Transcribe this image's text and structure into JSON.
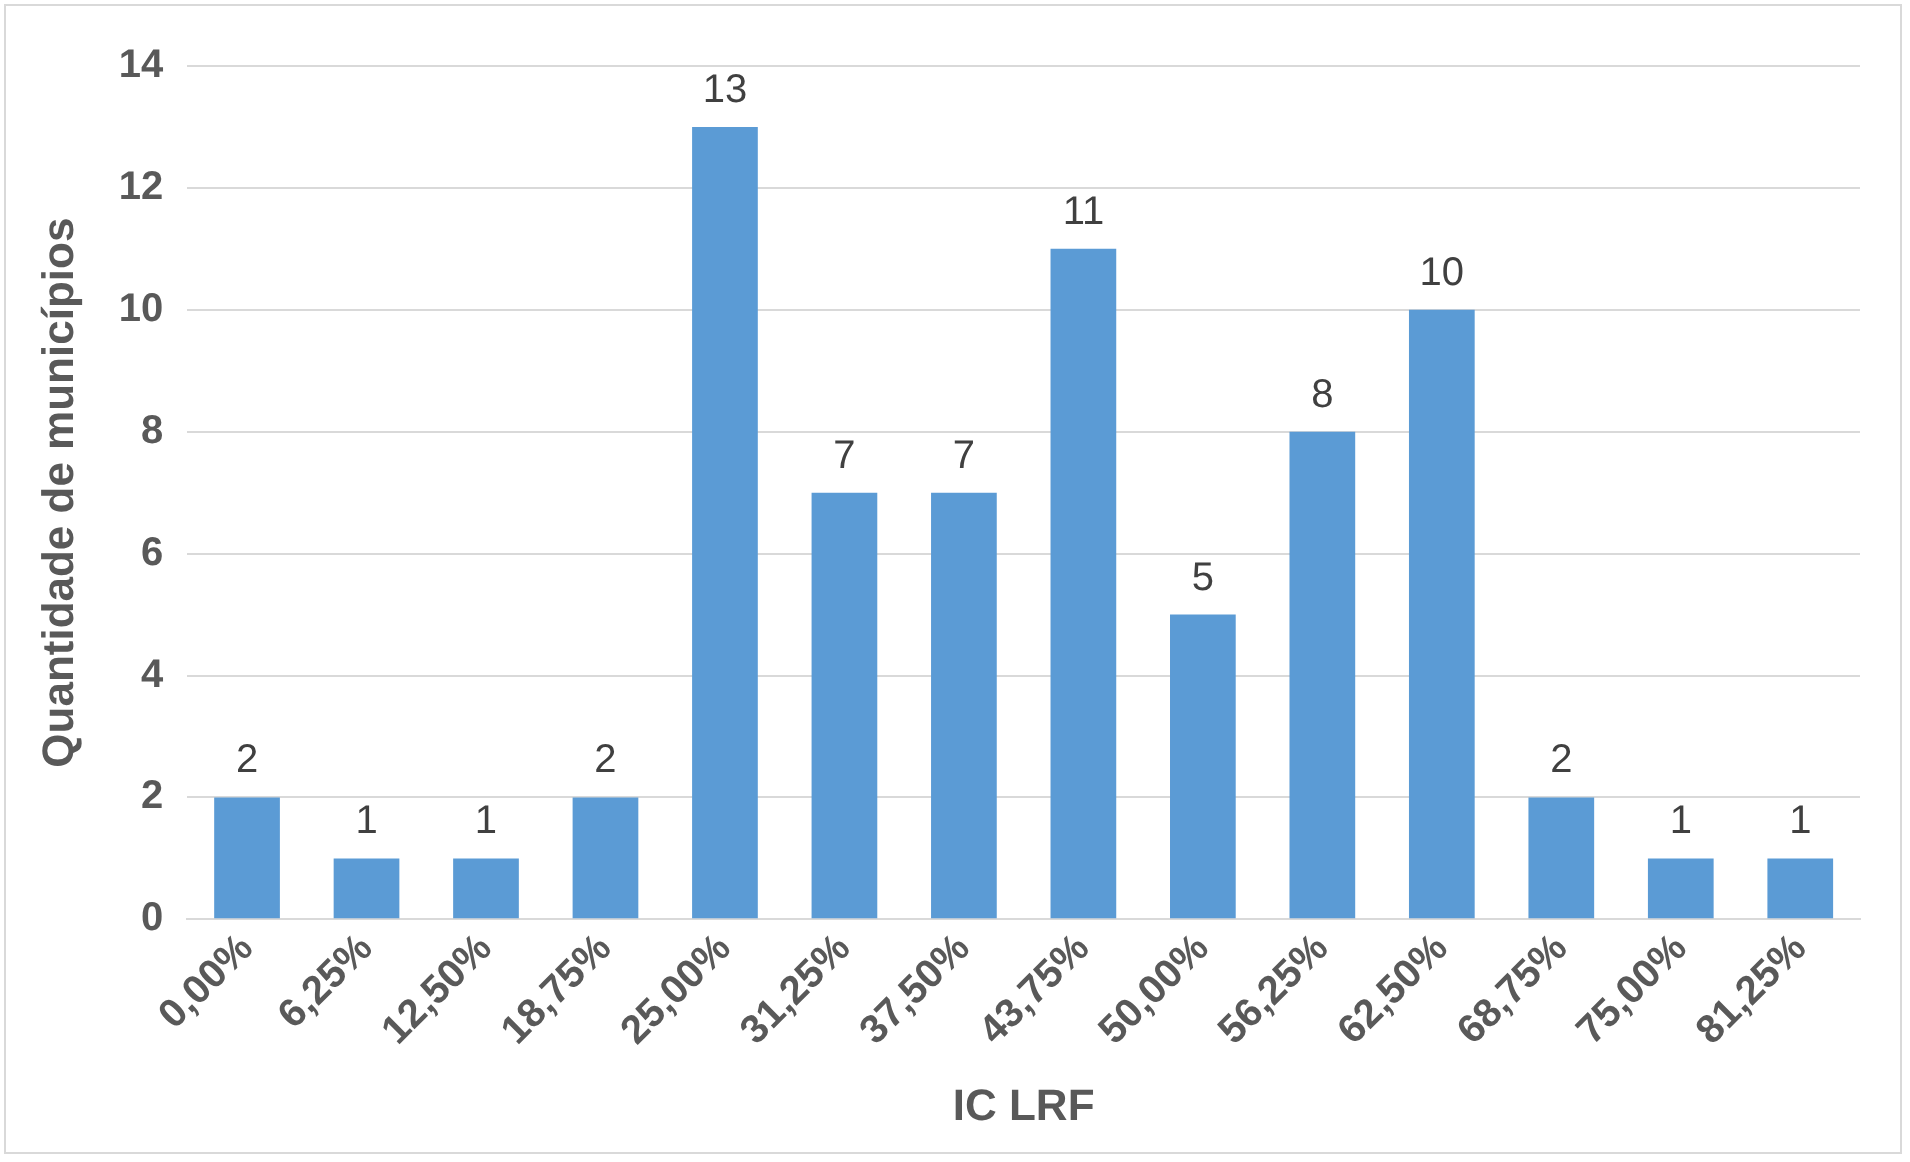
{
  "chart_data": {
    "type": "bar",
    "xlabel": "IC LRF",
    "ylabel": "Quantidade de municípios",
    "categories": [
      "0,00%",
      "6,25%",
      "12,50%",
      "18,75%",
      "25,00%",
      "31,25%",
      "37,50%",
      "43,75%",
      "50,00%",
      "56,25%",
      "62,50%",
      "68,75%",
      "75,00%",
      "81,25%"
    ],
    "values": [
      2,
      1,
      1,
      2,
      13,
      7,
      7,
      11,
      5,
      8,
      10,
      2,
      1,
      1
    ],
    "color": "#5b9bd5",
    "ylim": [
      0,
      14
    ],
    "yticks": [
      0,
      2,
      4,
      6,
      8,
      10,
      12,
      14
    ],
    "grid": "y",
    "legend": false,
    "data_labels": true
  }
}
